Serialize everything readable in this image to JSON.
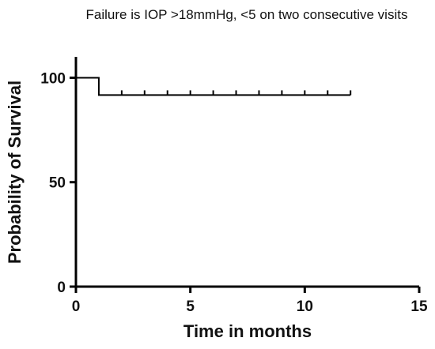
{
  "chart_data": {
    "type": "line",
    "subtype": "kaplan-meier-step",
    "title": "Failure is IOP >18mmHg, <5 on two consecutive visits",
    "xlabel": "Time in months",
    "ylabel": "Probability of Survival",
    "xlim": [
      0,
      15
    ],
    "ylim": [
      0,
      110
    ],
    "x_ticks": [
      0,
      5,
      10,
      15
    ],
    "y_ticks": [
      0,
      50,
      100
    ],
    "grid": false,
    "legend": "none",
    "line_color": "#000000",
    "series": [
      {
        "steps": [
          {
            "x": 0,
            "y": 100
          },
          {
            "x": 1,
            "y": 100
          },
          {
            "x": 1,
            "y": 91.7
          },
          {
            "x": 12,
            "y": 91.7
          }
        ],
        "censored_x": [
          2,
          3,
          4,
          5,
          6,
          7,
          8,
          9,
          10,
          11,
          12
        ]
      }
    ]
  }
}
